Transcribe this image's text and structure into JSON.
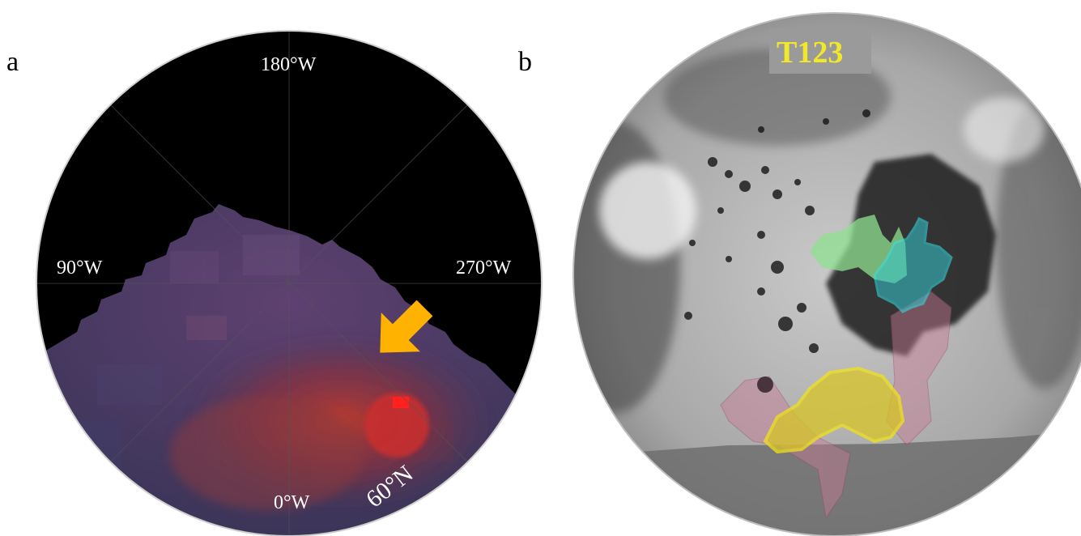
{
  "panel_a": {
    "letter": "a",
    "lon_labels": {
      "top": "180°W",
      "left": "90°W",
      "right": "270°W",
      "bottom": "0°W"
    },
    "lat_label": "60°N",
    "arrow_color": "#ffb300",
    "arrow_icon": "arrow-down-left-icon"
  },
  "panel_b": {
    "letter": "b",
    "flyby_label": "T123",
    "region_colors": {
      "green": "#8fe08f",
      "cyan": "#33e3e8",
      "yellow": "#f0e21a",
      "magenta": "#c77b94"
    }
  }
}
